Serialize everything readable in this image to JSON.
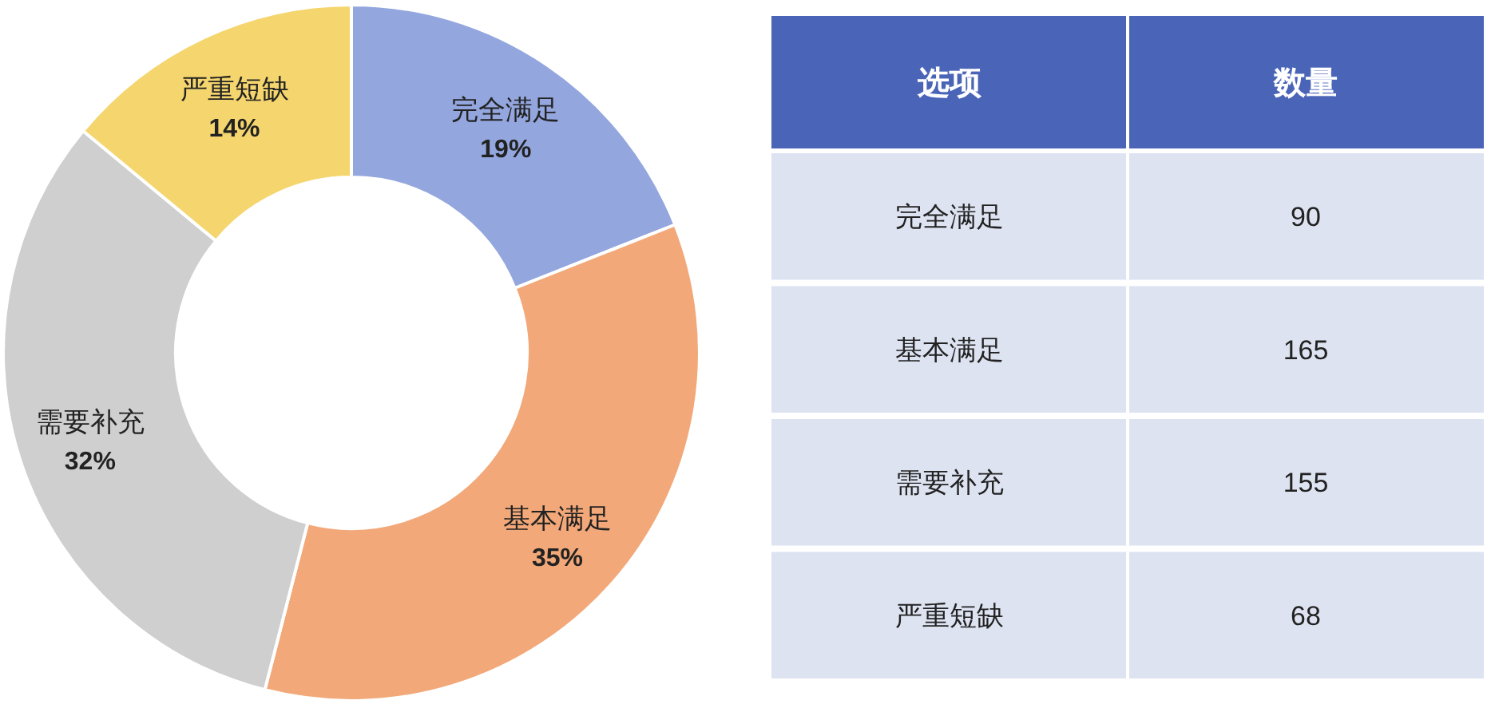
{
  "chart_data": [
    {
      "type": "donut",
      "categories": [
        "完全满足",
        "基本满足",
        "需要补充",
        "严重短缺"
      ],
      "values": [
        19,
        35,
        32,
        14
      ],
      "value_labels": [
        "19%",
        "35%",
        "32%",
        "14%"
      ],
      "colors": [
        "#93a6de",
        "#f2a878",
        "#cfcfcf",
        "#f5d56e"
      ]
    },
    {
      "type": "other",
      "xlabel": "选项",
      "ylabel": "数量",
      "categories": [
        "完全满足",
        "基本满足",
        "需要补充",
        "严重短缺"
      ],
      "values": [
        90,
        165,
        155,
        68
      ],
      "data_labels": true
    }
  ]
}
